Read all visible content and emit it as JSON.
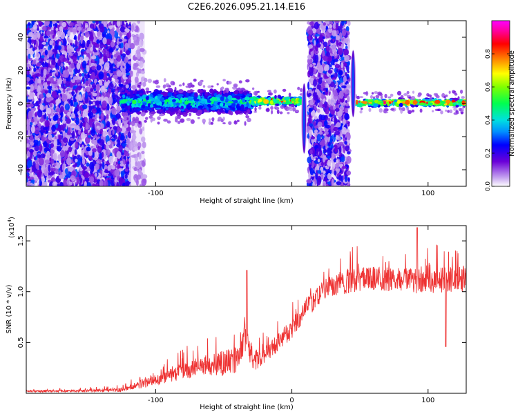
{
  "figure": {
    "title": "C2E6.2026.095.21.14.E16"
  },
  "chart_data": [
    {
      "type": "heatmap",
      "name": "spectrogram",
      "xlabel": "Height of straight line (km)",
      "ylabel": "Frequency (Hz)",
      "xlim": [
        -195,
        128
      ],
      "ylim": [
        -50,
        50
      ],
      "xticks": [
        -100,
        0,
        100
      ],
      "xtick_labels": [
        "-100",
        "",
        "100"
      ],
      "yticks": [
        -40,
        -20,
        0,
        20,
        40
      ],
      "ytick_labels": [
        "-40",
        "-20",
        "0",
        "20",
        "40"
      ],
      "colorbar": {
        "label": "Normalized spectral amplitude",
        "range": [
          0,
          1
        ],
        "ticks": [
          0.0,
          0.2,
          0.4,
          0.6,
          0.8
        ],
        "tick_labels": [
          "0.0",
          "0.2",
          "0.4",
          "0.6",
          "0.8"
        ]
      },
      "regions": [
        {
          "kind": "broadband_noise",
          "x_range": [
            -195,
            -118
          ],
          "freq_range": [
            -50,
            50
          ],
          "amplitude": 0.2
        },
        {
          "kind": "faint_noise",
          "x_range": [
            -118,
            -108
          ],
          "freq_range": [
            -50,
            50
          ],
          "amplitude": 0.05
        },
        {
          "kind": "signal_band",
          "x_range": [
            -125,
            -30
          ],
          "freq_range": [
            -8,
            10
          ],
          "amplitude": 0.4
        },
        {
          "kind": "signal_band",
          "x_range": [
            -30,
            8
          ],
          "freq_range": [
            -2,
            5
          ],
          "amplitude": 0.7
        },
        {
          "kind": "broadband_noise",
          "x_range": [
            12,
            42
          ],
          "freq_range": [
            -50,
            50
          ],
          "amplitude": 0.2
        },
        {
          "kind": "signal_band",
          "x_range": [
            46,
            128
          ],
          "freq_range": [
            -2,
            3
          ],
          "amplitude": 0.75
        }
      ],
      "spikes": [
        {
          "x": 9,
          "freq_range": [
            -30,
            12
          ]
        },
        {
          "x": 45,
          "freq_range": [
            -8,
            32
          ]
        }
      ]
    },
    {
      "type": "line",
      "name": "snr",
      "xlabel": "Height of straight line (km)",
      "ylabel": "SNR (10 * v/v)",
      "multiplier_label": "(x10",
      "multiplier_exp": "4",
      "xlim": [
        -195,
        128
      ],
      "ylim": [
        0,
        16500
      ],
      "xticks": [
        -100,
        0,
        100
      ],
      "xtick_labels": [
        "-100",
        "0",
        "100"
      ],
      "yticks": [
        5000,
        10000,
        15000
      ],
      "ytick_labels": [
        "0.5",
        "1.0",
        "1.5"
      ],
      "series": [
        {
          "name": "SNR",
          "color": "#ee3333",
          "trend_x": [
            -195,
            -150,
            -125,
            -110,
            -95,
            -80,
            -65,
            -50,
            -40,
            -35,
            -32,
            -28,
            -20,
            -10,
            0,
            10,
            20,
            30,
            40,
            60,
            80,
            100,
            128
          ],
          "trend_y": [
            200,
            250,
            350,
            900,
            1500,
            2200,
            2700,
            3000,
            3300,
            6000,
            4500,
            3200,
            3800,
            5000,
            6400,
            8200,
            9700,
            10600,
            11000,
            11300,
            11200,
            11000,
            11200
          ],
          "noise_y": [
            100,
            120,
            200,
            400,
            600,
            800,
            1000,
            1200,
            1300,
            1800,
            1400,
            1000,
            900,
            900,
            1000,
            1000,
            1000,
            1100,
            1200,
            1200,
            1200,
            1300,
            1300
          ],
          "peaks": [
            {
              "x": -33,
              "y": 12100
            },
            {
              "x": 92,
              "y": 16300
            },
            {
              "x": 113,
              "y": 4600
            }
          ]
        }
      ]
    }
  ]
}
